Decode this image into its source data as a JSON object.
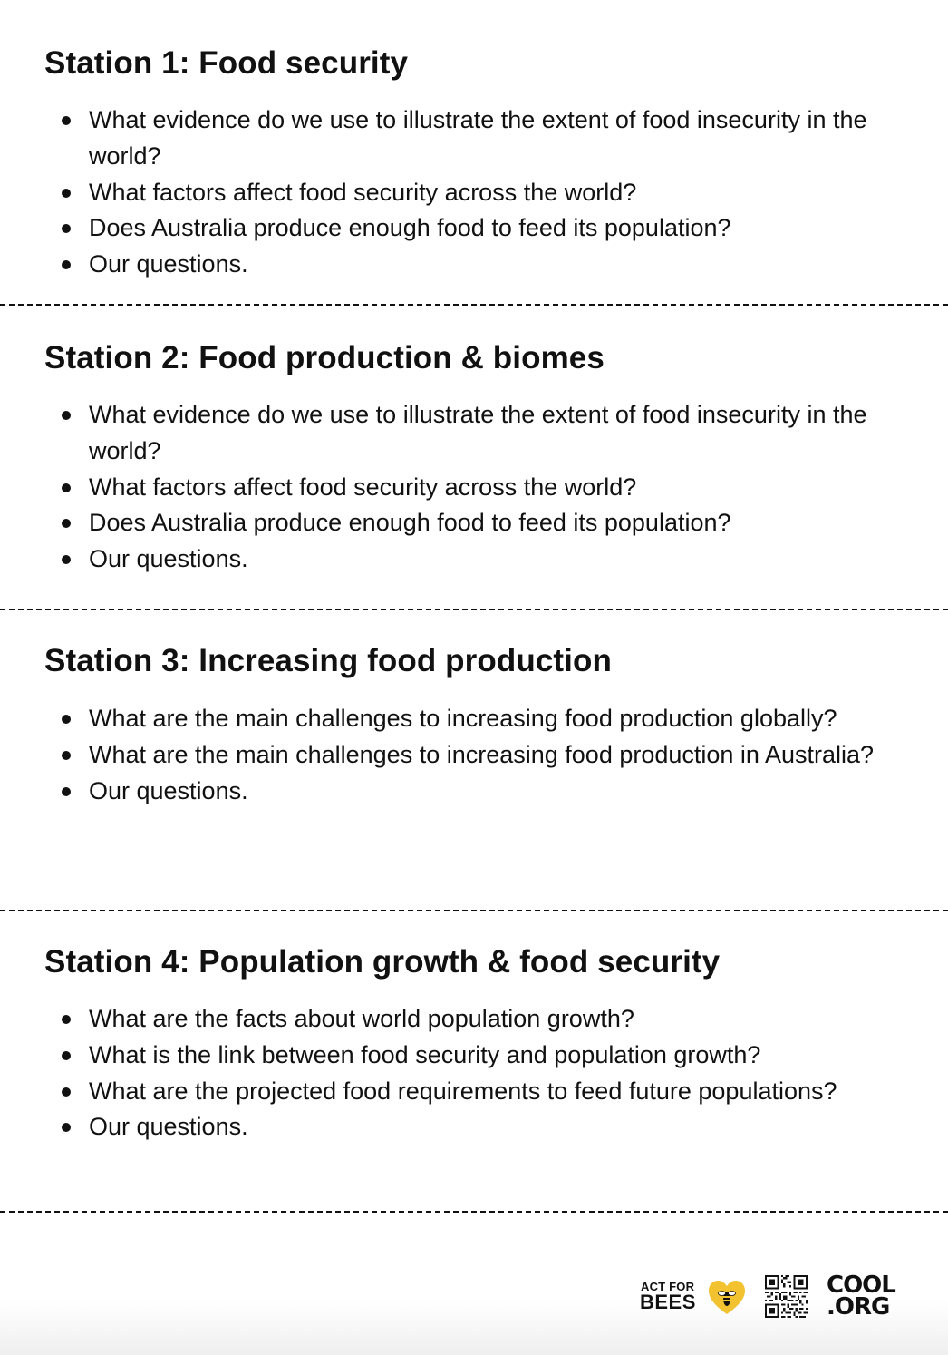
{
  "stations": [
    {
      "title": "Station 1: Food security",
      "items": [
        "What evidence do we use to illustrate the extent of food insecurity in the world?",
        "What factors affect food security across the world?",
        "Does Australia produce enough food to feed its population?",
        "Our questions."
      ]
    },
    {
      "title": "Station 2: Food production & biomes",
      "items": [
        "What evidence do we use to illustrate the extent of food insecurity in the world?",
        "What factors affect food security across the world?",
        "Does Australia produce enough food to feed its population?",
        "Our questions."
      ]
    },
    {
      "title": "Station 3: Increasing food production",
      "items": [
        "What are the main challenges to increasing food production globally?",
        "What are the main challenges to increasing food production in Australia?",
        "Our questions."
      ]
    },
    {
      "title": "Station 4: Population growth & food security",
      "items": [
        "What are the facts about world population growth?",
        "What is the link between food security and population growth?",
        "What are the projected food requirements to feed future populations?",
        "Our questions."
      ]
    }
  ],
  "footer": {
    "act_for_text": "ACT FOR",
    "bees_text": "BEES",
    "cool_line1": "COOL",
    "cool_line2": ".ORG",
    "heart_color": "#f2c230"
  }
}
